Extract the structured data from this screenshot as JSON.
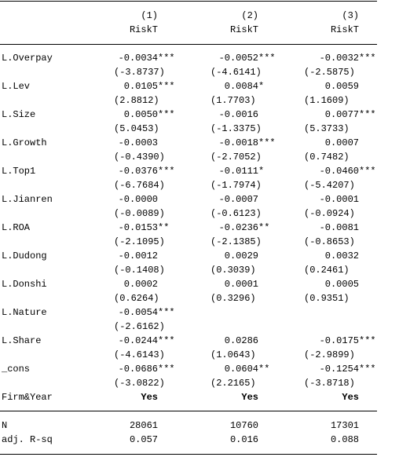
{
  "header": {
    "numbers": [
      "(1)",
      "(2)",
      "(3)"
    ],
    "depvars": [
      "RiskT",
      "RiskT",
      "RiskT"
    ]
  },
  "rows": [
    {
      "label": "L.Overpay",
      "coef": [
        {
          "value": "-0.0034",
          "stars": "***"
        },
        {
          "value": "-0.0052",
          "stars": "***"
        },
        {
          "value": "-0.0032",
          "stars": "***"
        }
      ],
      "t": [
        "(-3.8737)",
        "(-4.6141)",
        "(-2.5875)"
      ]
    },
    {
      "label": "L.Lev",
      "coef": [
        {
          "value": "0.0105",
          "stars": "***"
        },
        {
          "value": "0.0084",
          "stars": "*"
        },
        {
          "value": "0.0059"
        }
      ],
      "t": [
        "(2.8812)",
        "(1.7703)",
        "(1.1609)"
      ]
    },
    {
      "label": "L.Size",
      "coef": [
        {
          "value": "0.0050",
          "stars": "***"
        },
        {
          "value": "-0.0016"
        },
        {
          "value": "0.0077",
          "stars": "***"
        }
      ],
      "t": [
        "(5.0453)",
        "(-1.3375)",
        "(5.3733)"
      ]
    },
    {
      "label": "L.Growth",
      "coef": [
        {
          "value": "-0.0003"
        },
        {
          "value": "-0.0018",
          "stars": "***"
        },
        {
          "value": "0.0007"
        }
      ],
      "t": [
        "(-0.4390)",
        "(-2.7052)",
        "(0.7482)"
      ]
    },
    {
      "label": "L.Top1",
      "coef": [
        {
          "value": "-0.0376",
          "stars": "***"
        },
        {
          "value": "-0.0111",
          "stars": "*"
        },
        {
          "value": "-0.0460",
          "stars": "***"
        }
      ],
      "t": [
        "(-6.7684)",
        "(-1.7974)",
        "(-5.4207)"
      ]
    },
    {
      "label": "L.Jianren",
      "coef": [
        {
          "value": "-0.0000"
        },
        {
          "value": "-0.0007"
        },
        {
          "value": "-0.0001"
        }
      ],
      "t": [
        "(-0.0089)",
        "(-0.6123)",
        "(-0.0924)"
      ]
    },
    {
      "label": "L.ROA",
      "coef": [
        {
          "value": "-0.0153",
          "stars": "**"
        },
        {
          "value": "-0.0236",
          "stars": "**"
        },
        {
          "value": "-0.0081"
        }
      ],
      "t": [
        "(-2.1095)",
        "(-2.1385)",
        "(-0.8653)"
      ]
    },
    {
      "label": "L.Dudong",
      "coef": [
        {
          "value": "-0.0012"
        },
        {
          "value": "0.0029"
        },
        {
          "value": "0.0032"
        }
      ],
      "t": [
        "(-0.1408)",
        "(0.3039)",
        "(0.2461)"
      ]
    },
    {
      "label": "L.Donshi",
      "coef": [
        {
          "value": "0.0002"
        },
        {
          "value": "0.0001"
        },
        {
          "value": "0.0005"
        }
      ],
      "t": [
        "(0.6264)",
        "(0.3296)",
        "(0.9351)"
      ]
    },
    {
      "label": "L.Nature",
      "coef": [
        {
          "value": "-0.0054",
          "stars": "***"
        },
        null,
        null
      ],
      "t": [
        "(-2.6162)",
        null,
        null
      ]
    },
    {
      "label": "L.Share",
      "coef": [
        {
          "value": "-0.0244",
          "stars": "***"
        },
        {
          "value": "0.0286"
        },
        {
          "value": "-0.0175",
          "stars": "***"
        }
      ],
      "t": [
        "(-4.6143)",
        "(1.0643)",
        "(-2.9899)"
      ]
    },
    {
      "label": "_cons",
      "coef": [
        {
          "value": "-0.0686",
          "stars": "***"
        },
        {
          "value": "0.0604",
          "stars": "**"
        },
        {
          "value": "-0.1254",
          "stars": "***"
        }
      ],
      "t": [
        "(-3.0822)",
        "(2.2165)",
        "(-3.8718)"
      ]
    }
  ],
  "fe": {
    "label": "Firm&Year",
    "values": [
      "Yes",
      "Yes",
      "Yes"
    ]
  },
  "stats": [
    {
      "label": "N",
      "values": [
        "28061",
        "10760",
        "17301"
      ]
    },
    {
      "label": "adj. R-sq",
      "values": [
        "0.057",
        "0.016",
        "0.088"
      ]
    }
  ]
}
